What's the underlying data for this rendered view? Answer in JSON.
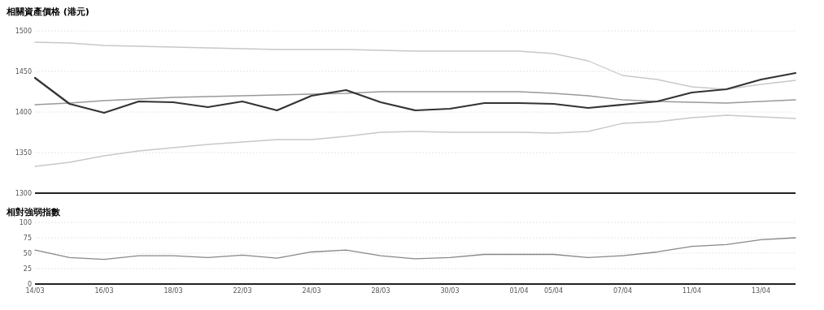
{
  "chart_data": [
    {
      "type": "line",
      "title": "相關資產價格 (港元)",
      "categories": [
        null,
        null,
        null,
        null,
        null,
        null,
        null,
        null,
        null,
        null,
        null,
        null,
        null,
        null,
        null,
        null,
        null,
        null,
        null,
        null,
        null,
        null,
        null
      ],
      "ylim": [
        1300,
        1500
      ],
      "yticks": [
        1300,
        1350,
        1400,
        1450,
        1500
      ],
      "grid": "y",
      "tick_labels": "y",
      "marker": "none",
      "line_style": "solid",
      "series": [
        {
          "color": "#c8c8c8",
          "values": [
            1486,
            1485,
            1482,
            1481,
            1480,
            1479,
            1478,
            1477,
            1477,
            1477,
            1476,
            1475,
            1475,
            1475,
            1475,
            1472,
            1463,
            1445,
            1440,
            1431,
            1428,
            1434,
            1439
          ]
        },
        {
          "color": "#c8c8c8",
          "values": [
            1333,
            1338,
            1346,
            1352,
            1356,
            1360,
            1363,
            1366,
            1366,
            1370,
            1375,
            1376,
            1375,
            1375,
            1375,
            1374,
            1376,
            1386,
            1388,
            1393,
            1396,
            1394,
            1392
          ]
        },
        {
          "color": "#999999",
          "values": [
            1409,
            1411,
            1414,
            1416,
            1418,
            1419,
            1420,
            1421,
            1422,
            1423,
            1425,
            1425,
            1425,
            1425,
            1425,
            1423,
            1420,
            1415,
            1413,
            1412,
            1411,
            1413,
            1415
          ]
        },
        {
          "color": "#333333",
          "values": [
            1442,
            1410,
            1399,
            1413,
            1412,
            1406,
            1413,
            1402,
            1420,
            1427,
            1412,
            1402,
            1404,
            1411,
            1411,
            1410,
            1405,
            1409,
            1413,
            1424,
            1428,
            1440,
            1448
          ]
        }
      ]
    },
    {
      "type": "line",
      "title": "相對強弱指數",
      "categories": [
        "14/03",
        null,
        "16/03",
        null,
        "18/03",
        null,
        "22/03",
        null,
        "24/03",
        null,
        "28/03",
        null,
        "30/03",
        null,
        "01/04",
        "05/04",
        null,
        "07/04",
        null,
        "11/04",
        null,
        "13/04",
        null
      ],
      "ylim": [
        0,
        100
      ],
      "yticks": [
        0,
        25,
        50,
        75,
        100
      ],
      "grid": "y",
      "marker": "none",
      "line_style": "solid",
      "series": [
        {
          "color": "#888888",
          "values": [
            55,
            43,
            40,
            46,
            46,
            43,
            47,
            42,
            52,
            55,
            46,
            41,
            43,
            48,
            48,
            48,
            43,
            46,
            52,
            61,
            64,
            72,
            75
          ]
        }
      ]
    }
  ]
}
